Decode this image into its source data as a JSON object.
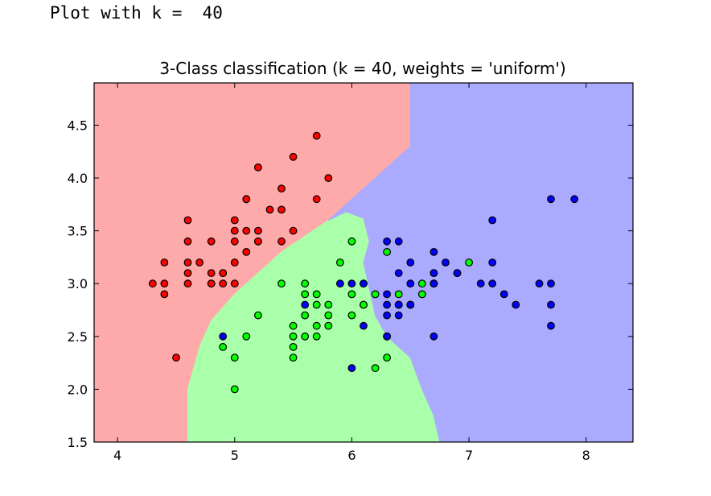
{
  "output_text": "Plot with k =  40",
  "chart_data": {
    "type": "scatter",
    "title": "3-Class classification (k = 40, weights = 'uniform')",
    "xlabel": "",
    "ylabel": "",
    "xlim": [
      3.8,
      8.4
    ],
    "ylim": [
      1.5,
      4.9
    ],
    "x_ticks": [
      4,
      5,
      6,
      7,
      8
    ],
    "x_tick_labels": [
      "4",
      "5",
      "6",
      "7",
      "8"
    ],
    "y_ticks": [
      1.5,
      2.0,
      2.5,
      3.0,
      3.5,
      4.0,
      4.5
    ],
    "y_tick_labels": [
      "1.5",
      "2.0",
      "2.5",
      "3.0",
      "3.5",
      "4.0",
      "4.5"
    ],
    "grid": false,
    "region_colors": {
      "red": "#ffaaaa",
      "green": "#aaffaa",
      "blue": "#aaaaff"
    },
    "point_colors": {
      "red": "#ff0000",
      "green": "#00ff00",
      "blue": "#0000ff"
    },
    "regions": {
      "red": [
        [
          3.8,
          4.9
        ],
        [
          6.5,
          4.9
        ],
        [
          6.5,
          4.3
        ],
        [
          6.4,
          4.2
        ],
        [
          6.2,
          4.0
        ],
        [
          6.0,
          3.8
        ],
        [
          5.9,
          3.7
        ],
        [
          5.8,
          3.6
        ],
        [
          5.6,
          3.45
        ],
        [
          5.4,
          3.3
        ],
        [
          5.2,
          3.1
        ],
        [
          5.0,
          2.9
        ],
        [
          4.8,
          2.65
        ],
        [
          4.7,
          2.4
        ],
        [
          4.6,
          2.0
        ],
        [
          4.6,
          1.5
        ],
        [
          3.8,
          1.5
        ]
      ],
      "green": [
        [
          4.6,
          1.5
        ],
        [
          4.6,
          2.0
        ],
        [
          4.7,
          2.4
        ],
        [
          4.8,
          2.65
        ],
        [
          5.0,
          2.9
        ],
        [
          5.2,
          3.1
        ],
        [
          5.4,
          3.3
        ],
        [
          5.6,
          3.45
        ],
        [
          5.8,
          3.6
        ],
        [
          5.95,
          3.68
        ],
        [
          6.1,
          3.62
        ],
        [
          6.15,
          3.4
        ],
        [
          6.1,
          3.2
        ],
        [
          6.15,
          2.95
        ],
        [
          6.2,
          2.7
        ],
        [
          6.3,
          2.5
        ],
        [
          6.4,
          2.4
        ],
        [
          6.5,
          2.3
        ],
        [
          6.6,
          2.0
        ],
        [
          6.7,
          1.75
        ],
        [
          6.75,
          1.5
        ]
      ],
      "blue": [
        [
          6.5,
          4.9
        ],
        [
          8.4,
          4.9
        ],
        [
          8.4,
          1.5
        ],
        [
          6.75,
          1.5
        ],
        [
          6.7,
          1.75
        ],
        [
          6.6,
          2.0
        ],
        [
          6.5,
          2.3
        ],
        [
          6.4,
          2.4
        ],
        [
          6.3,
          2.5
        ],
        [
          6.2,
          2.7
        ],
        [
          6.15,
          2.95
        ],
        [
          6.1,
          3.2
        ],
        [
          6.15,
          3.4
        ],
        [
          6.1,
          3.62
        ],
        [
          5.95,
          3.68
        ],
        [
          5.8,
          3.6
        ],
        [
          5.9,
          3.7
        ],
        [
          6.0,
          3.8
        ],
        [
          6.2,
          4.0
        ],
        [
          6.4,
          4.2
        ],
        [
          6.5,
          4.3
        ]
      ]
    },
    "series": [
      {
        "class": "red",
        "x": [
          5.7,
          5.5,
          5.2,
          5.8,
          5.1,
          5.1,
          5.7,
          5.3,
          5.4,
          5.4,
          4.6,
          5.0,
          5.1,
          5.2,
          5.5,
          4.8,
          5.0,
          5.2,
          4.6,
          5.0,
          5.1,
          5.2,
          5.4,
          4.4,
          4.6,
          4.7,
          4.6,
          4.8,
          4.9,
          5.0,
          4.3,
          4.4,
          4.6,
          4.9,
          4.8,
          4.9,
          5.0,
          4.8,
          4.4,
          4.5
        ],
        "y": [
          4.4,
          4.2,
          4.1,
          4.0,
          3.8,
          3.8,
          3.8,
          3.7,
          3.7,
          3.9,
          3.6,
          3.6,
          3.5,
          3.5,
          3.5,
          3.4,
          3.4,
          3.4,
          3.4,
          3.5,
          3.3,
          3.4,
          3.4,
          3.2,
          3.2,
          3.2,
          3.1,
          3.1,
          3.1,
          3.2,
          3.0,
          3.0,
          3.0,
          3.0,
          3.0,
          3.1,
          3.0,
          3.0,
          2.9,
          2.3
        ]
      },
      {
        "class": "green",
        "x": [
          6.0,
          5.9,
          6.3,
          6.6,
          7.0,
          6.7,
          6.1,
          5.4,
          5.6,
          5.7,
          5.8,
          6.0,
          6.2,
          6.4,
          6.1,
          6.5,
          6.6,
          5.6,
          5.7,
          5.8,
          6.1,
          6.7,
          6.3,
          5.6,
          5.7,
          5.8,
          5.2,
          6.0,
          5.5,
          5.7,
          5.1,
          5.6,
          5.5,
          5.5,
          4.9,
          5.5,
          5.0,
          6.3,
          6.2,
          5.0
        ],
        "y": [
          3.4,
          3.2,
          3.3,
          3.0,
          3.2,
          3.1,
          3.0,
          3.0,
          3.0,
          2.9,
          2.8,
          2.9,
          2.9,
          2.9,
          2.8,
          2.8,
          2.9,
          2.9,
          2.8,
          2.7,
          2.8,
          3.0,
          2.5,
          2.7,
          2.6,
          2.6,
          2.7,
          2.7,
          2.6,
          2.5,
          2.5,
          2.5,
          2.5,
          2.4,
          2.4,
          2.3,
          2.3,
          2.3,
          2.2,
          2.0
        ]
      },
      {
        "class": "blue",
        "x": [
          7.7,
          7.9,
          7.2,
          6.3,
          6.4,
          6.7,
          6.5,
          6.4,
          6.8,
          7.2,
          7.2,
          6.9,
          6.7,
          5.9,
          6.0,
          6.4,
          6.5,
          6.7,
          6.9,
          7.1,
          7.6,
          7.7,
          7.3,
          6.3,
          6.4,
          6.1,
          6.3,
          6.5,
          6.7,
          7.4,
          6.4,
          6.3,
          7.7,
          7.7,
          6.3,
          6.4,
          6.1,
          6.3,
          4.9,
          6.0,
          6.7,
          5.6
        ],
        "y": [
          3.8,
          3.8,
          3.6,
          3.4,
          3.4,
          3.3,
          3.2,
          3.1,
          3.2,
          3.2,
          3.0,
          3.1,
          3.1,
          3.0,
          3.0,
          2.8,
          3.0,
          3.0,
          3.1,
          3.0,
          3.0,
          3.0,
          2.9,
          2.9,
          2.8,
          2.6,
          2.7,
          2.8,
          2.5,
          2.8,
          2.7,
          2.8,
          2.8,
          2.6,
          2.5,
          2.8,
          3.0,
          2.5,
          2.5,
          2.2,
          3.0,
          2.8
        ]
      }
    ]
  }
}
